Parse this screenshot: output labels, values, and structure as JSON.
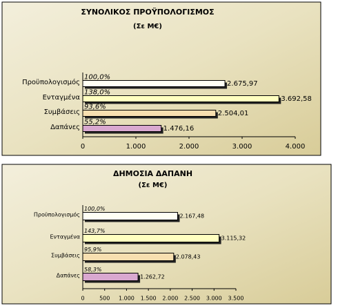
{
  "chart_data": [
    {
      "type": "bar",
      "orientation": "horizontal",
      "title": "ΣΥΝΟΛΙΚΟΣ ΠΡΟΫΠΟΛΟΓΙΣΜΟΣ",
      "subtitle": "(Σε Μ€)",
      "categories": [
        "Προϋπολογισμός",
        "Ενταγμένα",
        "Συμβάσεις",
        "Δαπάνες"
      ],
      "values": [
        2675.97,
        3692.58,
        2504.01,
        1476.16
      ],
      "value_labels": [
        "2.675,97",
        "3.692,58",
        "2.504,01",
        "1.476,16"
      ],
      "percent_labels": [
        "100,0%",
        "138,0%",
        "93,6%",
        "55,2%"
      ],
      "colors": [
        "#fffff4",
        "#ffffc0",
        "#f7dfb0",
        "#d9a8d0"
      ],
      "xlim": [
        0,
        4000
      ],
      "xticks": [
        0,
        {
          "value": 1000,
          "label": "1.000"
        },
        {
          "value": 2000,
          "label": "2.000"
        },
        {
          "value": 3000,
          "label": "3.000"
        },
        {
          "value": 4000,
          "label": "4.000"
        }
      ]
    },
    {
      "type": "bar",
      "orientation": "horizontal",
      "title": "ΔΗΜΟΣΙΑ ΔΑΠΑΝΗ",
      "subtitle": "(Σε Μ€)",
      "categories": [
        "Προϋπολογισμός",
        "Ενταγμένα",
        "Συμβάσεις",
        "Δαπάνες"
      ],
      "values": [
        2167.48,
        3115.32,
        2078.43,
        1262.72
      ],
      "value_labels": [
        "2.167,48",
        "3.115,32",
        "2.078,43",
        "1.262,72"
      ],
      "percent_labels": [
        "100,0%",
        "143,7%",
        "95,9%",
        "58,3%"
      ],
      "colors": [
        "#fffff4",
        "#ffffc0",
        "#f7dfb0",
        "#d9a8d0"
      ],
      "xlim": [
        0,
        3500
      ],
      "xticks": [
        0,
        500,
        {
          "value": 1000,
          "label": "1.000"
        },
        {
          "value": 1500,
          "label": "1.500"
        },
        {
          "value": 2000,
          "label": "2.000"
        },
        {
          "value": 2500,
          "label": "2.500"
        },
        {
          "value": 3000,
          "label": "3.000"
        },
        {
          "value": 3500,
          "label": "3.500"
        }
      ]
    }
  ]
}
